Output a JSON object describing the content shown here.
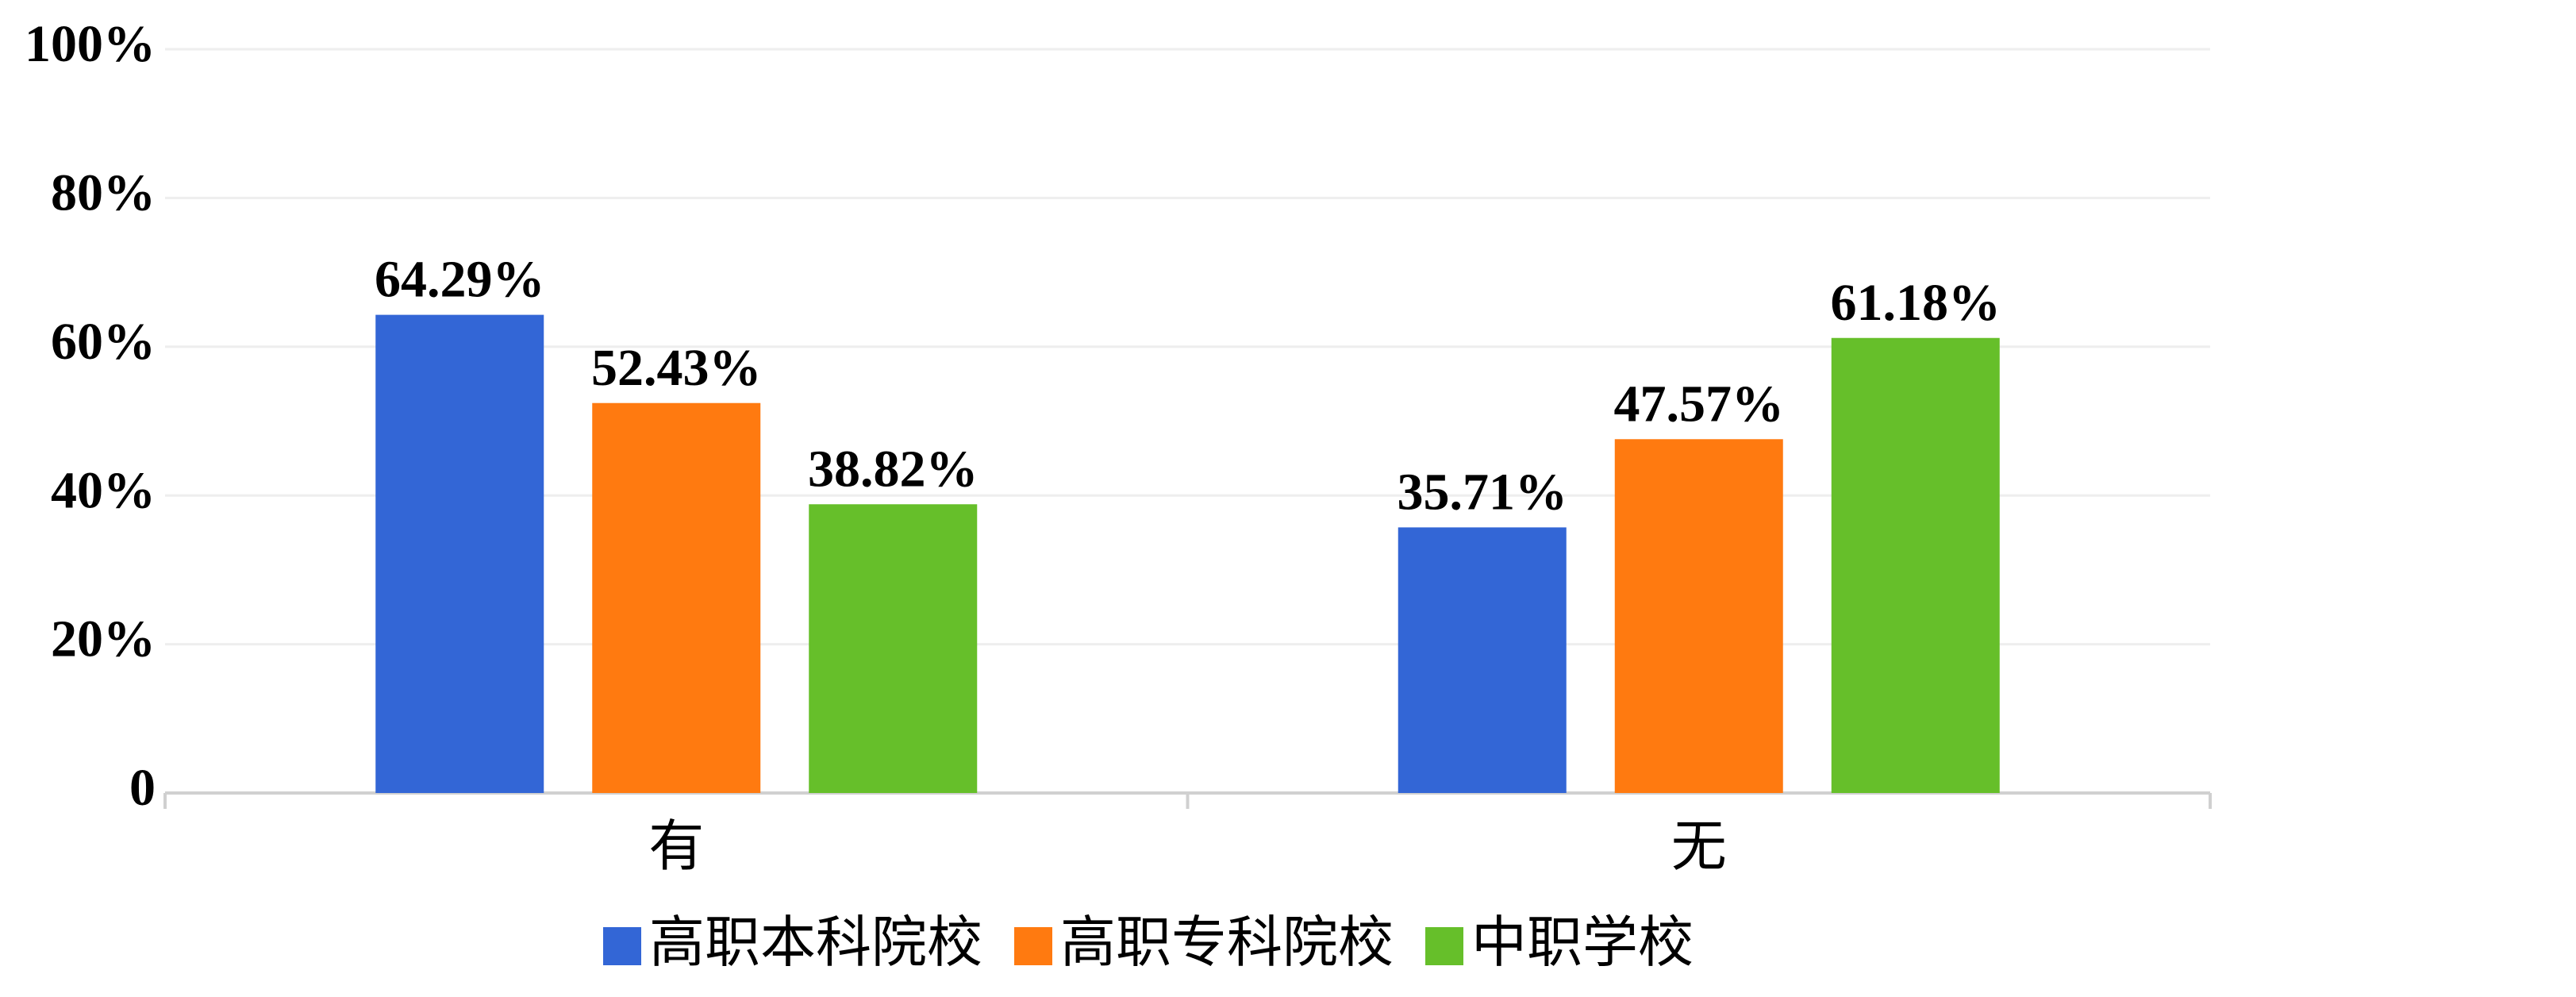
{
  "chart_data": {
    "type": "bar",
    "categories": [
      "有",
      "无"
    ],
    "series": [
      {
        "name": "高职本科院校",
        "color": "#3366d6",
        "values": [
          64.29,
          35.71
        ],
        "value_labels": [
          "64.29%",
          "35.71%"
        ]
      },
      {
        "name": "高职专科院校",
        "color": "#ff7a10",
        "values": [
          52.43,
          47.57
        ],
        "value_labels": [
          "52.43%",
          "47.57%"
        ]
      },
      {
        "name": "中职学校",
        "color": "#66bf2a",
        "values": [
          38.82,
          61.18
        ],
        "value_labels": [
          "38.82%",
          "61.18%"
        ]
      }
    ],
    "ylim": [
      0,
      100
    ],
    "yticks": [
      0,
      {
        "value": 20,
        "label": "20%"
      },
      {
        "value": 40,
        "label": "40%"
      },
      {
        "value": 60,
        "label": "60%"
      },
      {
        "value": 80,
        "label": "80%"
      },
      {
        "value": 100,
        "label": "100%"
      }
    ],
    "grid": true,
    "legend": "bottom"
  }
}
